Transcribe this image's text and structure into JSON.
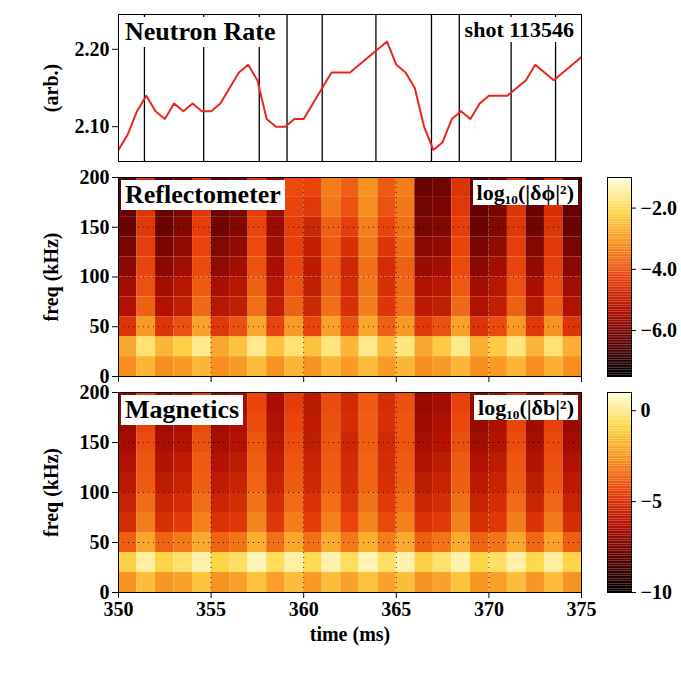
{
  "chart_data": [
    {
      "type": "line",
      "title": "Neutron Rate",
      "annotation": "shot 113546",
      "ylabel": "(arb.)",
      "color": "#e8261c",
      "tick_labels": "y",
      "x": [
        350,
        350.5,
        351,
        351.5,
        352,
        352.5,
        353,
        353.5,
        354,
        354.5,
        355,
        355.5,
        356,
        356.5,
        357,
        357.5,
        358,
        358.5,
        359,
        359.5,
        360,
        360.5,
        361,
        361.5,
        362,
        362.5,
        363,
        363.5,
        364,
        364.5,
        365,
        365.5,
        366,
        366.5,
        367,
        367.5,
        368,
        368.5,
        369,
        369.5,
        370,
        370.5,
        371,
        371.5,
        372,
        372.5,
        373,
        373.5,
        374,
        374.5,
        375
      ],
      "values": [
        2.07,
        2.09,
        2.12,
        2.14,
        2.12,
        2.11,
        2.13,
        2.12,
        2.13,
        2.12,
        2.12,
        2.13,
        2.15,
        2.17,
        2.18,
        2.16,
        2.11,
        2.1,
        2.1,
        2.11,
        2.11,
        2.13,
        2.15,
        2.17,
        2.17,
        2.17,
        2.18,
        2.19,
        2.2,
        2.21,
        2.18,
        2.17,
        2.15,
        2.1,
        2.07,
        2.08,
        2.11,
        2.12,
        2.11,
        2.13,
        2.14,
        2.14,
        2.14,
        2.15,
        2.16,
        2.18,
        2.17,
        2.16,
        2.17,
        2.18,
        2.19
      ],
      "event_times": [
        351.4,
        354.6,
        357.6,
        359.1,
        361.0,
        363.9,
        366.9,
        368.4,
        371.2,
        373.6
      ],
      "xlim": [
        350,
        375
      ],
      "ylim": [
        2.055,
        2.245
      ],
      "yticks": [
        2.1,
        2.2
      ]
    },
    {
      "type": "heatmap",
      "title": "Reflectometer",
      "colorbar_label": "log₁₀(|δϕ|²)",
      "ylabel": "freq (kHz)",
      "tick_labels": "y",
      "grid": true,
      "xlim": [
        350,
        375
      ],
      "xticks": [
        350,
        355,
        360,
        365,
        370,
        375
      ],
      "ylim": [
        0,
        200
      ],
      "yticks": [
        0,
        50,
        100,
        150,
        200
      ],
      "time_bins": [
        350,
        351,
        352,
        353,
        354,
        355,
        356,
        357,
        358,
        359,
        360,
        361,
        362,
        363,
        364,
        365,
        366,
        367,
        368,
        369,
        370,
        371,
        372,
        373,
        374,
        375
      ],
      "freq_bins": [
        0,
        20,
        40,
        60,
        80,
        100,
        120,
        140,
        160,
        180,
        200
      ],
      "colorbar_range": [
        -7.5,
        -1
      ],
      "colorbar_ticks": [
        -2,
        -4,
        -6
      ],
      "cells": [
        [
          -3.2,
          -2.6,
          -3.2,
          -3.0,
          -2.6,
          -3.2,
          -3.0,
          -2.5,
          -3.1,
          -2.6,
          -3.1,
          -2.6,
          -3.0,
          -2.5,
          -3.0,
          -2.6,
          -3.2,
          -3.0,
          -2.6,
          -3.2,
          -3.0,
          -2.6,
          -3.2,
          -2.7,
          -3.2
        ],
        [
          -2.8,
          -1.8,
          -2.6,
          -2.2,
          -1.6,
          -2.8,
          -2.4,
          -1.6,
          -2.4,
          -1.8,
          -2.4,
          -1.7,
          -2.6,
          -1.6,
          -2.5,
          -1.7,
          -2.8,
          -2.3,
          -1.6,
          -2.7,
          -2.3,
          -1.7,
          -2.6,
          -1.8,
          -2.7
        ],
        [
          -4.5,
          -3.0,
          -4.5,
          -4.0,
          -2.9,
          -4.4,
          -4.0,
          -2.8,
          -4.2,
          -3.0,
          -4.2,
          -2.9,
          -4.0,
          -2.8,
          -3.8,
          -3.0,
          -4.4,
          -4.0,
          -2.9,
          -4.5,
          -4.1,
          -3.0,
          -4.4,
          -3.1,
          -4.5
        ],
        [
          -5.3,
          -3.8,
          -5.3,
          -5.0,
          -3.7,
          -5.2,
          -5.0,
          -3.6,
          -5.0,
          -3.8,
          -4.8,
          -3.6,
          -4.6,
          -3.4,
          -4.5,
          -3.6,
          -5.1,
          -5.0,
          -3.7,
          -5.3,
          -5.0,
          -3.8,
          -5.2,
          -3.9,
          -5.3
        ],
        [
          -5.5,
          -4.0,
          -5.5,
          -5.2,
          -3.9,
          -5.4,
          -5.2,
          -3.8,
          -5.2,
          -4.0,
          -5.0,
          -3.8,
          -4.7,
          -3.5,
          -4.6,
          -3.7,
          -5.3,
          -5.2,
          -3.9,
          -5.5,
          -5.2,
          -4.0,
          -5.4,
          -4.1,
          -5.5
        ],
        [
          -5.8,
          -4.2,
          -5.8,
          -5.5,
          -4.1,
          -5.7,
          -5.5,
          -4.0,
          -5.4,
          -4.2,
          -5.1,
          -3.9,
          -4.8,
          -3.6,
          -4.7,
          -3.8,
          -5.6,
          -5.5,
          -4.1,
          -5.8,
          -5.5,
          -4.2,
          -5.7,
          -4.3,
          -5.8
        ],
        [
          -6.0,
          -4.3,
          -6.0,
          -5.7,
          -4.2,
          -5.9,
          -5.7,
          -4.1,
          -5.5,
          -4.3,
          -5.0,
          -3.9,
          -4.6,
          -3.5,
          -4.5,
          -3.7,
          -5.8,
          -5.7,
          -4.2,
          -6.0,
          -5.7,
          -4.3,
          -5.9,
          -4.4,
          -6.0
        ],
        [
          -6.2,
          -4.4,
          -6.2,
          -5.9,
          -4.3,
          -6.1,
          -5.9,
          -4.2,
          -5.6,
          -4.3,
          -4.8,
          -3.8,
          -4.3,
          -3.4,
          -4.2,
          -3.6,
          -6.0,
          -5.9,
          -4.3,
          -6.2,
          -5.9,
          -4.4,
          -6.1,
          -4.5,
          -6.2
        ],
        [
          -6.3,
          -4.5,
          -6.3,
          -6.0,
          -4.4,
          -6.2,
          -6.0,
          -4.3,
          -5.6,
          -4.2,
          -4.4,
          -3.5,
          -4.0,
          -3.2,
          -4.0,
          -3.5,
          -6.1,
          -6.0,
          -4.4,
          -6.3,
          -6.0,
          -4.5,
          -6.2,
          -4.6,
          -6.3
        ],
        [
          -6.4,
          -4.6,
          -6.4,
          -6.1,
          -4.5,
          -6.3,
          -6.1,
          -4.4,
          -5.6,
          -4.1,
          -4.2,
          -3.4,
          -3.8,
          -3.1,
          -3.9,
          -3.4,
          -6.2,
          -6.1,
          -4.5,
          -6.4,
          -6.1,
          -4.6,
          -6.3,
          -4.7,
          -6.4
        ]
      ]
    },
    {
      "type": "heatmap",
      "title": "Magnetics",
      "colorbar_label": "log₁₀(|δb|²)",
      "ylabel": "freq (kHz)",
      "xlabel": "time (ms)",
      "grid": true,
      "xlim": [
        350,
        375
      ],
      "xticks": [
        350,
        355,
        360,
        365,
        370,
        375
      ],
      "ylim": [
        0,
        200
      ],
      "yticks": [
        0,
        50,
        100,
        150,
        200
      ],
      "time_bins": [
        350,
        351,
        352,
        353,
        354,
        355,
        356,
        357,
        358,
        359,
        360,
        361,
        362,
        363,
        364,
        365,
        366,
        367,
        368,
        369,
        370,
        371,
        372,
        373,
        374,
        375
      ],
      "freq_bins": [
        0,
        20,
        40,
        60,
        80,
        100,
        120,
        140,
        160,
        180,
        200
      ],
      "colorbar_range": [
        -10,
        1
      ],
      "colorbar_ticks": [
        0,
        -5,
        -10
      ],
      "cells": [
        [
          -2.6,
          -1.5,
          -2.5,
          -2.2,
          -1.4,
          -2.6,
          -2.3,
          -1.4,
          -2.3,
          -1.5,
          -2.4,
          -1.5,
          -2.2,
          -1.4,
          -2.2,
          -1.5,
          -2.6,
          -2.2,
          -1.4,
          -2.5,
          -2.3,
          -1.5,
          -2.5,
          -1.6,
          -2.6
        ],
        [
          -1.0,
          0.2,
          -0.9,
          -0.4,
          0.4,
          -0.9,
          -0.5,
          0.5,
          -0.6,
          0.3,
          -0.7,
          0.4,
          -0.6,
          0.5,
          -0.5,
          0.4,
          -1.0,
          -0.4,
          0.4,
          -0.9,
          -0.5,
          0.3,
          -0.8,
          0.2,
          -0.9
        ],
        [
          -3.8,
          -2.1,
          -3.7,
          -3.2,
          -2.0,
          -3.7,
          -3.3,
          -1.9,
          -3.4,
          -2.1,
          -3.4,
          -2.0,
          -3.2,
          -1.9,
          -3.1,
          -2.0,
          -3.8,
          -3.3,
          -2.0,
          -3.7,
          -3.3,
          -2.1,
          -3.6,
          -2.2,
          -3.8
        ],
        [
          -5.2,
          -3.1,
          -5.1,
          -4.7,
          -3.0,
          -5.0,
          -4.8,
          -2.9,
          -4.8,
          -3.1,
          -4.6,
          -3.0,
          -4.4,
          -2.9,
          -4.3,
          -3.0,
          -5.0,
          -4.7,
          -3.0,
          -5.1,
          -4.8,
          -3.1,
          -5.0,
          -3.2,
          -5.2
        ],
        [
          -5.6,
          -3.5,
          -5.5,
          -5.2,
          -3.4,
          -5.5,
          -5.2,
          -3.3,
          -5.2,
          -3.5,
          -5.0,
          -3.4,
          -4.8,
          -3.3,
          -4.7,
          -3.4,
          -5.5,
          -5.2,
          -3.4,
          -5.6,
          -5.2,
          -3.5,
          -5.5,
          -3.6,
          -5.6
        ],
        [
          -6.0,
          -3.9,
          -5.9,
          -5.6,
          -3.8,
          -5.9,
          -5.6,
          -3.7,
          -5.6,
          -3.9,
          -5.4,
          -3.8,
          -5.2,
          -3.7,
          -5.1,
          -3.8,
          -5.9,
          -5.6,
          -3.8,
          -6.0,
          -5.6,
          -3.9,
          -5.9,
          -4.0,
          -6.0
        ],
        [
          -6.3,
          -4.0,
          -6.2,
          -5.9,
          -3.9,
          -6.2,
          -5.9,
          -3.8,
          -5.9,
          -4.0,
          -5.6,
          -3.9,
          -5.3,
          -3.7,
          -5.2,
          -3.9,
          -6.2,
          -5.9,
          -3.9,
          -6.3,
          -5.9,
          -4.0,
          -6.2,
          -4.1,
          -6.3
        ],
        [
          -6.6,
          -4.2,
          -6.5,
          -6.2,
          -4.1,
          -6.5,
          -6.2,
          -4.0,
          -6.1,
          -4.2,
          -5.8,
          -4.0,
          -5.4,
          -3.8,
          -5.3,
          -4.0,
          -6.5,
          -6.2,
          -4.1,
          -6.6,
          -6.2,
          -4.2,
          -6.5,
          -4.3,
          -6.6
        ],
        [
          -6.8,
          -4.4,
          -6.7,
          -6.4,
          -4.3,
          -6.7,
          -6.4,
          -4.2,
          -6.3,
          -4.4,
          -5.9,
          -4.1,
          -5.2,
          -3.8,
          -5.1,
          -4.0,
          -6.7,
          -6.4,
          -4.3,
          -6.8,
          -6.4,
          -4.4,
          -6.7,
          -4.5,
          -6.8
        ],
        [
          -7.0,
          -4.6,
          -6.9,
          -6.6,
          -4.5,
          -6.9,
          -6.6,
          -4.4,
          -6.5,
          -4.6,
          -6.0,
          -4.2,
          -5.3,
          -3.9,
          -5.2,
          -4.1,
          -6.9,
          -6.6,
          -4.5,
          -7.0,
          -6.6,
          -4.6,
          -6.9,
          -4.7,
          -7.0
        ]
      ]
    }
  ]
}
